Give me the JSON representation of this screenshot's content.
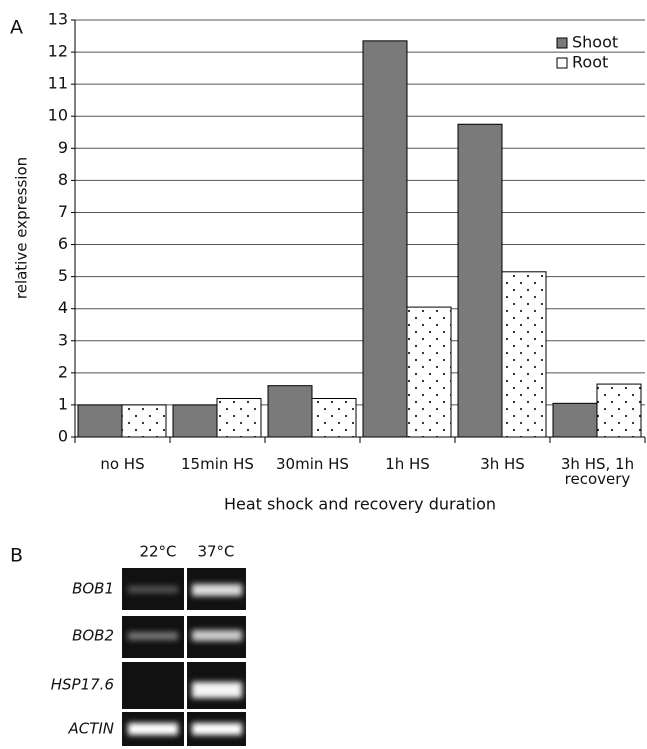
{
  "panel_a_label": "A",
  "panel_b_label": "B",
  "chart_data": {
    "type": "bar",
    "y_label": "relative expression",
    "x_label": "Heat shock and recovery duration",
    "categories": [
      "no HS",
      "15min HS",
      "30min HS",
      "1h HS",
      "3h HS",
      "3h HS, 1h recovery"
    ],
    "series": [
      {
        "name": "Shoot",
        "color": "#7a7a7a",
        "values": [
          1,
          1,
          1.6,
          12.35,
          9.75,
          1.05
        ]
      },
      {
        "name": "Root",
        "color": "#ffffff",
        "values": [
          1,
          1.2,
          1.2,
          4.05,
          5.15,
          1.65
        ]
      }
    ],
    "ylim": [
      0,
      13
    ],
    "yticks": [
      0,
      1,
      2,
      3,
      4,
      5,
      6,
      7,
      8,
      9,
      10,
      11,
      12,
      13
    ],
    "grid": true,
    "legend": "top-right"
  },
  "gel": {
    "lanes": [
      "22°C",
      "37°C"
    ],
    "rows": [
      "BOB1",
      "BOB2",
      "HSP17.6",
      "ACTIN"
    ]
  }
}
